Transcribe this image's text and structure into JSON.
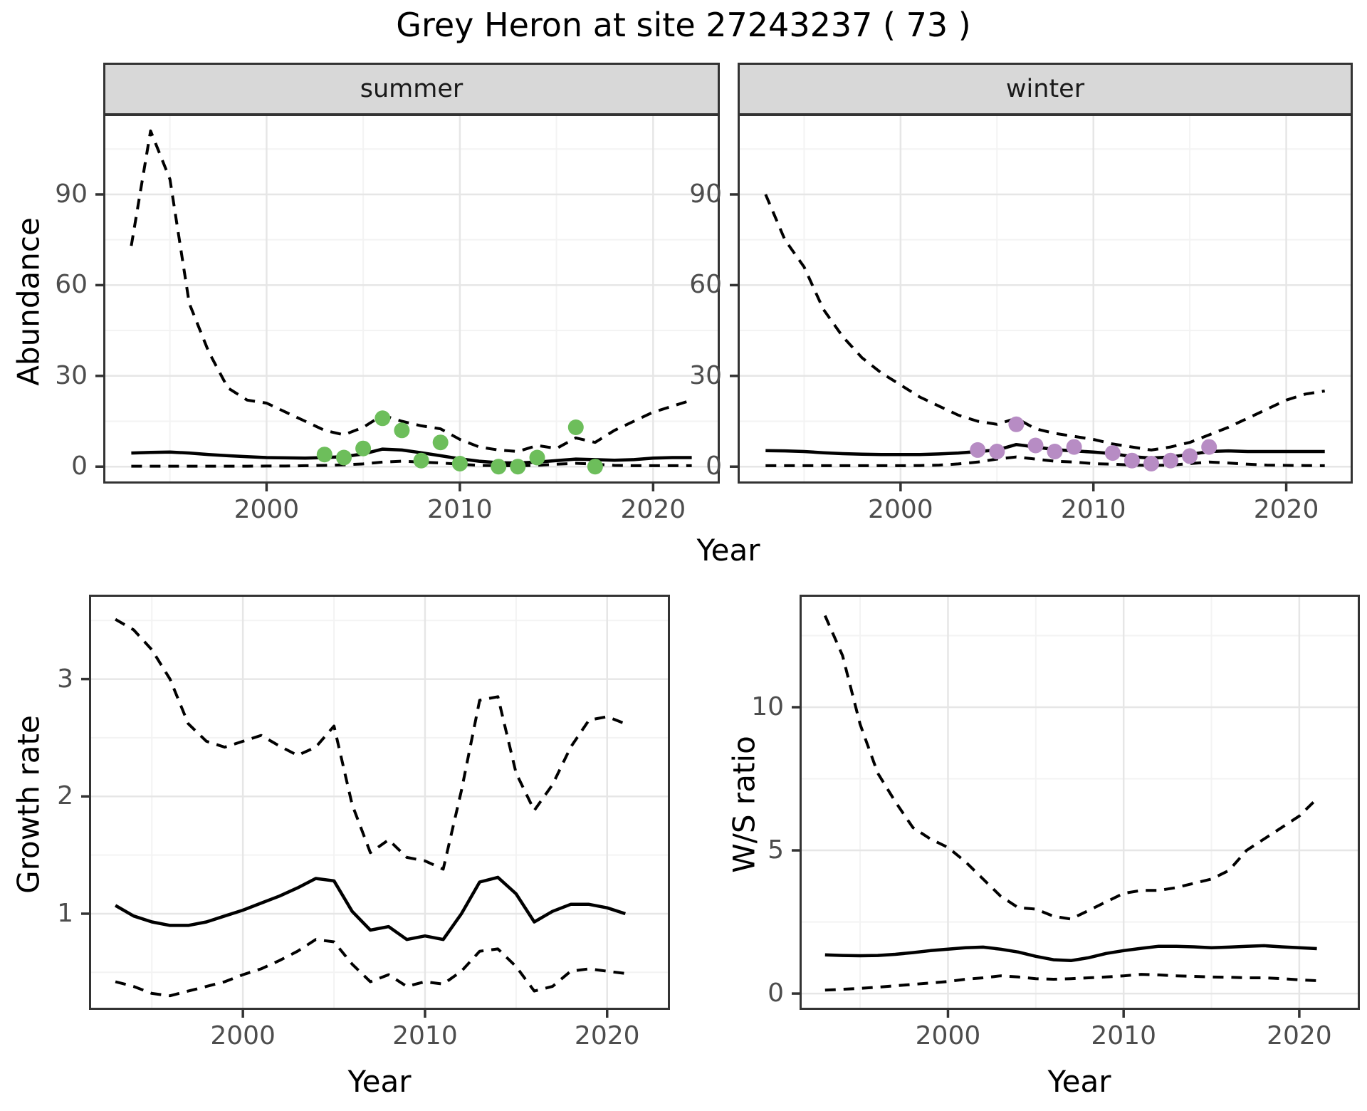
{
  "title": "Grey Heron at site 27243237 ( 73 )",
  "axis_titles": {
    "y_top": "Abundance",
    "y_bottom_left": "Growth rate",
    "y_bottom_right": "W/S ratio",
    "x_top": "Year",
    "x_bottom_left": "Year",
    "x_bottom_right": "Year"
  },
  "colors": {
    "summer_point": "#6DBE5B",
    "winter_point": "#B78CC4",
    "line": "#000000",
    "grid_major": "#E6E6E6",
    "grid_minor": "#F3F3F3",
    "strip_bg": "#D8D8D8",
    "panel_border": "#333333",
    "axis_text": "#4D4D4D",
    "tick_mark": "#333333"
  },
  "chart_data": [
    {
      "type": "line",
      "facet": "summer",
      "ylabel": "Abundance",
      "xlabel": "Year",
      "xlim": [
        1991.55,
        2023.45
      ],
      "ylim": [
        -5.6,
        116.6
      ],
      "x_ticks": [
        2000,
        2010,
        2020
      ],
      "x_ticks_minor": [
        1995,
        2005,
        2015
      ],
      "y_ticks": [
        0,
        30,
        60,
        90
      ],
      "y_ticks_minor": [
        15,
        45,
        75,
        105
      ],
      "x": [
        1993,
        1994,
        1995,
        1996,
        1997,
        1998,
        1999,
        2000,
        2001,
        2002,
        2003,
        2004,
        2005,
        2006,
        2007,
        2008,
        2009,
        2010,
        2011,
        2012,
        2013,
        2014,
        2015,
        2016,
        2017,
        2018,
        2019,
        2020,
        2021,
        2022
      ],
      "series": [
        {
          "name": "upper_ci",
          "style": "dashed",
          "values": [
            73,
            111,
            95,
            54,
            38,
            26,
            22,
            21,
            18,
            15,
            12,
            10.5,
            13,
            17,
            15,
            13.5,
            12.5,
            9,
            6.5,
            5.5,
            5,
            7,
            6,
            9.5,
            8,
            12,
            15,
            18,
            20,
            22
          ]
        },
        {
          "name": "median",
          "style": "solid",
          "values": [
            4.5,
            4.7,
            4.8,
            4.5,
            4.0,
            3.6,
            3.3,
            3.0,
            2.9,
            2.8,
            3.0,
            3.3,
            4.2,
            5.8,
            5.5,
            4.6,
            3.6,
            2.6,
            1.8,
            1.3,
            1.2,
            1.5,
            2.0,
            2.5,
            2.3,
            2.1,
            2.3,
            2.8,
            3.0,
            3.0
          ]
        },
        {
          "name": "lower_ci",
          "style": "dashed",
          "values": [
            0.15,
            0.15,
            0.15,
            0.15,
            0.15,
            0.15,
            0.15,
            0.2,
            0.2,
            0.3,
            0.4,
            0.6,
            0.9,
            1.5,
            1.8,
            1.5,
            1.2,
            0.8,
            0.4,
            0.3,
            0.3,
            0.4,
            0.8,
            1.1,
            0.8,
            0.4,
            0.3,
            0.3,
            0.3,
            0.3
          ]
        }
      ],
      "points": {
        "name": "observed-counts-summer",
        "color_key": "summer_point",
        "years": [
          2003,
          2004,
          2005,
          2006,
          2007,
          2008,
          2009,
          2010,
          2012,
          2013,
          2014,
          2016,
          2017
        ],
        "values": [
          4,
          3,
          6,
          16,
          12,
          2,
          8,
          1,
          0,
          0,
          3,
          13,
          0
        ]
      }
    },
    {
      "type": "line",
      "facet": "winter",
      "ylabel": "Abundance",
      "xlabel": "Year",
      "xlim": [
        1991.55,
        2023.45
      ],
      "ylim": [
        -5.6,
        116.6
      ],
      "x_ticks": [
        2000,
        2010,
        2020
      ],
      "x_ticks_minor": [
        1995,
        2005,
        2015
      ],
      "y_ticks": [
        0,
        30,
        60,
        90
      ],
      "y_ticks_minor": [
        15,
        45,
        75,
        105
      ],
      "x": [
        1993,
        1994,
        1995,
        1996,
        1997,
        1998,
        1999,
        2000,
        2001,
        2002,
        2003,
        2004,
        2005,
        2006,
        2007,
        2008,
        2009,
        2010,
        2011,
        2012,
        2013,
        2014,
        2015,
        2016,
        2017,
        2018,
        2019,
        2020,
        2021,
        2022
      ],
      "series": [
        {
          "name": "upper_ci",
          "style": "dashed",
          "values": [
            90,
            75,
            66,
            52,
            43,
            36,
            31,
            27,
            23,
            20,
            17,
            15,
            14,
            16,
            12.5,
            11,
            10,
            9,
            7.5,
            6.5,
            5.5,
            6.5,
            8,
            10.5,
            13,
            16,
            19,
            22,
            24,
            25
          ]
        },
        {
          "name": "median",
          "style": "solid",
          "values": [
            5.3,
            5.2,
            5.0,
            4.6,
            4.3,
            4.1,
            4.0,
            4.0,
            4.0,
            4.2,
            4.5,
            5.0,
            5.5,
            7.3,
            6.5,
            5.6,
            5.2,
            4.8,
            4.3,
            3.3,
            2.8,
            3.2,
            4.0,
            5.0,
            5.2,
            5.0,
            5.0,
            5.0,
            5.0,
            5.0
          ]
        },
        {
          "name": "lower_ci",
          "style": "dashed",
          "values": [
            0.3,
            0.3,
            0.3,
            0.3,
            0.3,
            0.3,
            0.3,
            0.3,
            0.35,
            0.5,
            0.9,
            1.5,
            2.5,
            3.2,
            2.5,
            1.8,
            1.5,
            1.0,
            0.8,
            0.5,
            0.4,
            0.5,
            1.0,
            1.5,
            1.2,
            0.8,
            0.5,
            0.4,
            0.35,
            0.3
          ]
        }
      ],
      "points": {
        "name": "observed-counts-winter",
        "color_key": "winter_point",
        "years": [
          2004,
          2005,
          2006,
          2007,
          2008,
          2009,
          2011,
          2012,
          2013,
          2014,
          2015,
          2016
        ],
        "values": [
          5.5,
          5,
          14,
          7,
          5,
          6.5,
          4.5,
          2,
          1,
          2,
          3.5,
          6.5
        ]
      }
    },
    {
      "type": "line",
      "facet": null,
      "ylabel": "Growth rate",
      "xlabel": "Year",
      "xlim": [
        1991.55,
        2023.45
      ],
      "ylim": [
        0.18,
        3.72
      ],
      "x_ticks": [
        2000,
        2010,
        2020
      ],
      "x_ticks_minor": [
        1995,
        2005,
        2015
      ],
      "y_ticks": [
        1,
        2,
        3
      ],
      "y_ticks_minor": [
        0.5,
        1.5,
        2.5,
        3.5
      ],
      "x": [
        1993,
        1994,
        1995,
        1996,
        1997,
        1998,
        1999,
        2000,
        2001,
        2002,
        2003,
        2004,
        2005,
        2006,
        2007,
        2008,
        2009,
        2010,
        2011,
        2012,
        2013,
        2014,
        2015,
        2016,
        2017,
        2018,
        2019,
        2020,
        2021
      ],
      "series": [
        {
          "name": "upper_ci",
          "style": "dashed",
          "values": [
            3.51,
            3.42,
            3.25,
            3.0,
            2.62,
            2.47,
            2.42,
            2.47,
            2.52,
            2.43,
            2.35,
            2.42,
            2.6,
            1.93,
            1.52,
            1.63,
            1.48,
            1.45,
            1.38,
            2.05,
            2.82,
            2.85,
            2.2,
            1.88,
            2.1,
            2.42,
            2.65,
            2.68,
            2.62
          ]
        },
        {
          "name": "median",
          "style": "solid",
          "values": [
            1.07,
            0.98,
            0.93,
            0.9,
            0.9,
            0.93,
            0.98,
            1.03,
            1.09,
            1.15,
            1.22,
            1.3,
            1.28,
            1.02,
            0.86,
            0.89,
            0.78,
            0.81,
            0.78,
            1.0,
            1.27,
            1.31,
            1.17,
            0.93,
            1.02,
            1.08,
            1.08,
            1.05,
            1.0
          ]
        },
        {
          "name": "lower_ci",
          "style": "dashed",
          "values": [
            0.42,
            0.38,
            0.32,
            0.3,
            0.34,
            0.38,
            0.42,
            0.48,
            0.53,
            0.6,
            0.68,
            0.78,
            0.76,
            0.57,
            0.42,
            0.48,
            0.38,
            0.42,
            0.4,
            0.51,
            0.68,
            0.7,
            0.55,
            0.34,
            0.38,
            0.51,
            0.53,
            0.51,
            0.49
          ]
        }
      ],
      "points": null
    },
    {
      "type": "line",
      "facet": null,
      "ylabel": "W/S ratio",
      "xlabel": "Year",
      "xlim": [
        1991.55,
        2023.45
      ],
      "ylim": [
        -0.57,
        13.93
      ],
      "x_ticks": [
        2000,
        2010,
        2020
      ],
      "x_ticks_minor": [
        1995,
        2005,
        2015
      ],
      "y_ticks": [
        0,
        5,
        10
      ],
      "y_ticks_minor": [
        2.5,
        7.5,
        12.5
      ],
      "x": [
        1993,
        1994,
        1995,
        1996,
        1997,
        1998,
        1999,
        2000,
        2001,
        2002,
        2003,
        2004,
        2005,
        2006,
        2007,
        2008,
        2009,
        2010,
        2011,
        2012,
        2013,
        2014,
        2015,
        2016,
        2017,
        2018,
        2019,
        2020,
        2021
      ],
      "series": [
        {
          "name": "upper_ci",
          "style": "dashed",
          "values": [
            13.2,
            11.8,
            9.4,
            7.7,
            6.7,
            5.8,
            5.4,
            5.1,
            4.6,
            4.0,
            3.4,
            3.0,
            2.95,
            2.7,
            2.6,
            2.9,
            3.2,
            3.5,
            3.6,
            3.6,
            3.7,
            3.85,
            4.0,
            4.3,
            5.0,
            5.4,
            5.8,
            6.2,
            6.8
          ]
        },
        {
          "name": "median",
          "style": "solid",
          "values": [
            1.35,
            1.33,
            1.32,
            1.33,
            1.37,
            1.43,
            1.5,
            1.55,
            1.6,
            1.62,
            1.55,
            1.45,
            1.3,
            1.18,
            1.15,
            1.25,
            1.4,
            1.5,
            1.58,
            1.65,
            1.65,
            1.63,
            1.6,
            1.62,
            1.65,
            1.67,
            1.63,
            1.6,
            1.57
          ]
        },
        {
          "name": "lower_ci",
          "style": "dashed",
          "values": [
            0.12,
            0.15,
            0.18,
            0.22,
            0.27,
            0.32,
            0.37,
            0.42,
            0.5,
            0.55,
            0.62,
            0.58,
            0.52,
            0.5,
            0.52,
            0.55,
            0.58,
            0.62,
            0.67,
            0.65,
            0.62,
            0.6,
            0.58,
            0.57,
            0.55,
            0.55,
            0.52,
            0.48,
            0.45
          ]
        }
      ],
      "points": null
    }
  ]
}
